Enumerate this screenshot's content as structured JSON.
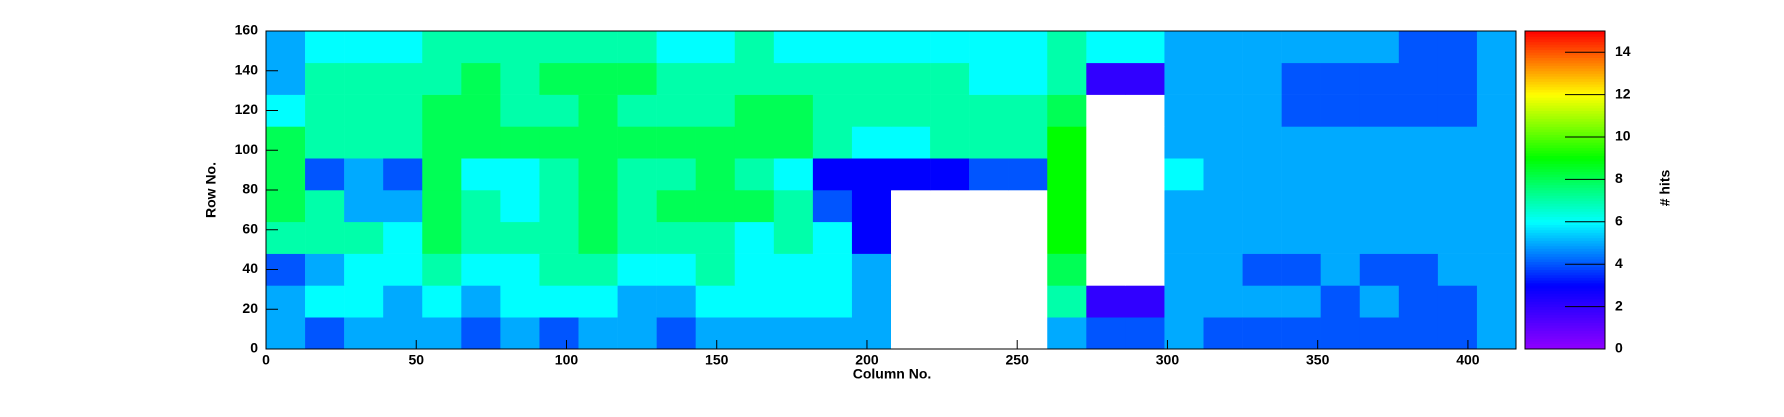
{
  "chart_data": {
    "type": "heatmap",
    "x_label": "Column No.",
    "y_label": "Row No.",
    "z_label": "# hits",
    "x_edges": [
      0,
      13,
      26,
      39,
      52,
      65,
      78,
      91,
      104,
      117,
      130,
      143,
      156,
      169,
      182,
      195,
      208,
      221,
      234,
      247,
      260,
      273,
      286,
      299,
      312,
      325,
      338,
      351,
      364,
      377,
      390,
      403,
      416
    ],
    "y_edges": [
      0,
      16,
      32,
      48,
      64,
      80,
      96,
      112,
      128,
      144,
      160
    ],
    "values": [
      [
        5,
        4,
        5,
        5,
        5,
        4,
        5,
        4,
        5,
        5,
        4,
        5,
        5,
        5,
        5,
        5,
        0,
        0,
        0,
        0,
        5,
        4,
        4,
        5,
        4,
        4,
        4,
        4,
        4,
        4,
        4,
        5
      ],
      [
        5,
        6,
        6,
        5,
        6,
        5,
        6,
        6,
        6,
        5,
        5,
        6,
        6,
        6,
        6,
        5,
        0,
        0,
        0,
        0,
        7,
        2,
        2,
        5,
        5,
        5,
        5,
        4,
        5,
        4,
        4,
        5
      ],
      [
        4,
        5,
        6,
        6,
        7,
        6,
        6,
        7,
        7,
        6,
        6,
        7,
        6,
        6,
        6,
        5,
        0,
        0,
        0,
        0,
        8,
        0,
        0,
        5,
        5,
        4,
        4,
        5,
        4,
        4,
        5,
        5
      ],
      [
        7,
        7,
        7,
        6,
        8,
        7,
        7,
        7,
        8,
        7,
        7,
        7,
        6,
        7,
        6,
        3,
        0,
        0,
        0,
        0,
        9,
        0,
        0,
        5,
        5,
        5,
        5,
        5,
        5,
        5,
        5,
        5
      ],
      [
        8,
        7,
        5,
        5,
        8,
        7,
        6,
        7,
        8,
        7,
        8,
        8,
        8,
        7,
        4,
        3,
        0,
        0,
        0,
        0,
        9,
        0,
        0,
        5,
        5,
        5,
        5,
        5,
        5,
        5,
        5,
        5
      ],
      [
        8,
        4,
        5,
        4,
        8,
        6,
        6,
        7,
        8,
        7,
        7,
        8,
        7,
        6,
        3,
        3,
        3,
        3,
        4,
        4,
        9,
        0,
        0,
        6,
        5,
        5,
        5,
        5,
        5,
        5,
        5,
        5
      ],
      [
        8,
        7,
        7,
        7,
        8,
        8,
        8,
        8,
        8,
        8,
        8,
        8,
        8,
        8,
        7,
        6,
        6,
        7,
        7,
        7,
        9,
        0,
        0,
        5,
        5,
        5,
        5,
        5,
        5,
        5,
        5,
        5
      ],
      [
        6,
        7,
        7,
        7,
        8,
        8,
        7,
        7,
        8,
        7,
        7,
        7,
        8,
        8,
        7,
        7,
        7,
        7,
        7,
        7,
        8,
        0,
        0,
        5,
        5,
        5,
        4,
        4,
        4,
        4,
        4,
        5
      ],
      [
        5,
        7,
        7,
        7,
        7,
        8,
        7,
        8,
        8,
        8,
        7,
        7,
        7,
        7,
        7,
        7,
        7,
        7,
        6,
        6,
        7,
        2,
        2,
        5,
        5,
        5,
        4,
        4,
        4,
        4,
        4,
        5
      ],
      [
        5,
        6,
        6,
        6,
        7,
        7,
        7,
        7,
        7,
        7,
        6,
        6,
        7,
        6,
        6,
        6,
        6,
        6,
        6,
        6,
        7,
        6,
        6,
        5,
        5,
        5,
        5,
        5,
        5,
        4,
        4,
        5
      ]
    ],
    "xlim": [
      0,
      416
    ],
    "ylim": [
      0,
      160
    ],
    "xticks": [
      0,
      50,
      100,
      150,
      200,
      250,
      300,
      350,
      400
    ],
    "yticks": [
      0,
      20,
      40,
      60,
      80,
      100,
      120,
      140,
      160
    ],
    "zlim": [
      0,
      15
    ],
    "zticks": [
      0,
      2,
      4,
      6,
      8,
      10,
      12,
      14
    ],
    "colorscale": [
      "#9000ff",
      "#0000ff",
      "#00ffff",
      "#00ff00",
      "#ffff00",
      "#ff0000"
    ]
  }
}
